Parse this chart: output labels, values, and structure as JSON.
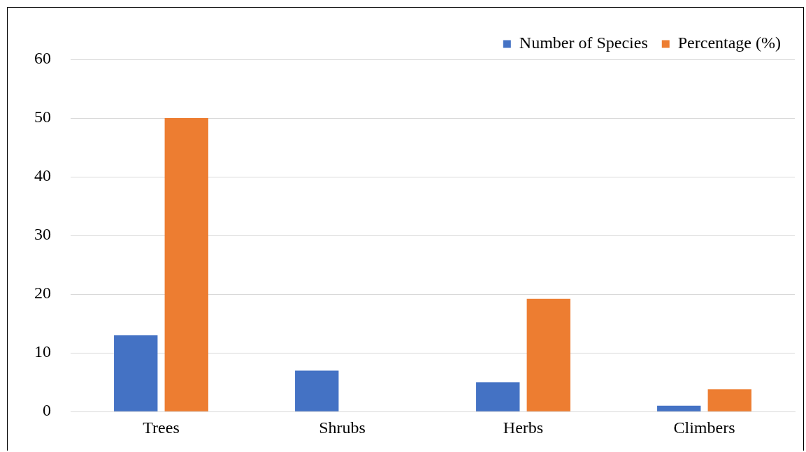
{
  "chart_data": {
    "type": "bar",
    "categories": [
      "Trees",
      "Shrubs",
      "Herbs",
      "Climbers"
    ],
    "series": [
      {
        "name": "Number of Species",
        "color": "#4472c4",
        "values": [
          13,
          7,
          5,
          1
        ]
      },
      {
        "name": "Percentage (%)",
        "color": "#ed7d31",
        "values": [
          50,
          null,
          19.2,
          3.8
        ]
      }
    ],
    "ylim": [
      0,
      60
    ],
    "yticks": [
      0,
      10,
      20,
      30,
      40,
      50,
      60
    ],
    "grid": "y",
    "legend": "top right"
  }
}
